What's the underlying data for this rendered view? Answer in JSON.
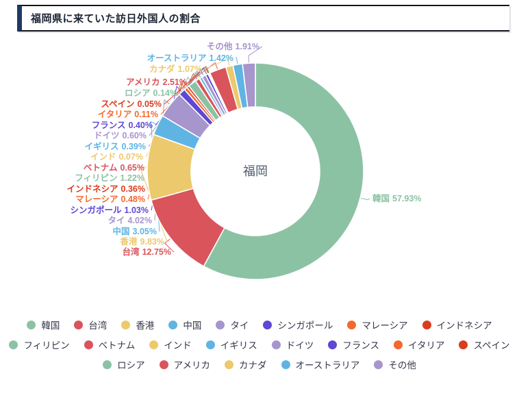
{
  "header": {
    "title": "福岡県に来ていた訪日外国人の割合"
  },
  "chart_data": {
    "type": "pie",
    "subtype": "donut",
    "title": "福岡県に来ていた訪日外国人の割合",
    "center_label": "福岡",
    "unit": "%",
    "categories": [
      "韓国",
      "台湾",
      "香港",
      "中国",
      "タイ",
      "シンガポール",
      "マレーシア",
      "インドネシア",
      "フィリピン",
      "ベトナム",
      "インド",
      "イギリス",
      "ドイツ",
      "フランス",
      "イタリア",
      "スペイン",
      "ロシア",
      "アメリカ",
      "カナダ",
      "オーストラリア",
      "その他"
    ],
    "values": [
      57.93,
      12.75,
      9.83,
      3.05,
      4.02,
      1.03,
      0.48,
      0.36,
      1.22,
      0.65,
      0.07,
      0.39,
      0.6,
      0.4,
      0.11,
      0.05,
      0.14,
      2.51,
      1.07,
      1.42,
      1.91
    ],
    "value_labels": [
      "57.93%",
      "12.75%",
      "9.83%",
      "3.05%",
      "4.02%",
      "1.03%",
      "0.48%",
      "0.36%",
      "1.22%",
      "0.65%",
      "0.07%",
      "0.39%",
      "0.60%",
      "0.40%",
      "0.11%",
      "0.05%",
      "0.14%",
      "2.51%",
      "1.07%",
      "1.42%",
      "1.91%"
    ],
    "palette": [
      "#8CC2A4",
      "#D9545B",
      "#ECC96D",
      "#5FB4E3",
      "#A795CD",
      "#5E48D4",
      "#F4692E",
      "#DB3B1E"
    ],
    "start_angle": "top",
    "direction": "clockwise",
    "legend_position": "bottom",
    "legend_rows": [
      [
        "韓国",
        "台湾",
        "香港",
        "中国",
        "タイ",
        "シンガポール",
        "マレーシア",
        "インドネシア"
      ],
      [
        "フィリピン",
        "ベトナム",
        "インド",
        "イギリス",
        "ドイツ",
        "フランス",
        "イタリア",
        "スペイン"
      ],
      [
        "ロシア",
        "アメリカ",
        "カナダ",
        "オーストラリア",
        "その他"
      ]
    ],
    "text_color": "#36364a",
    "title_color": "#1b2433",
    "accent_color": "#1e3a64"
  }
}
